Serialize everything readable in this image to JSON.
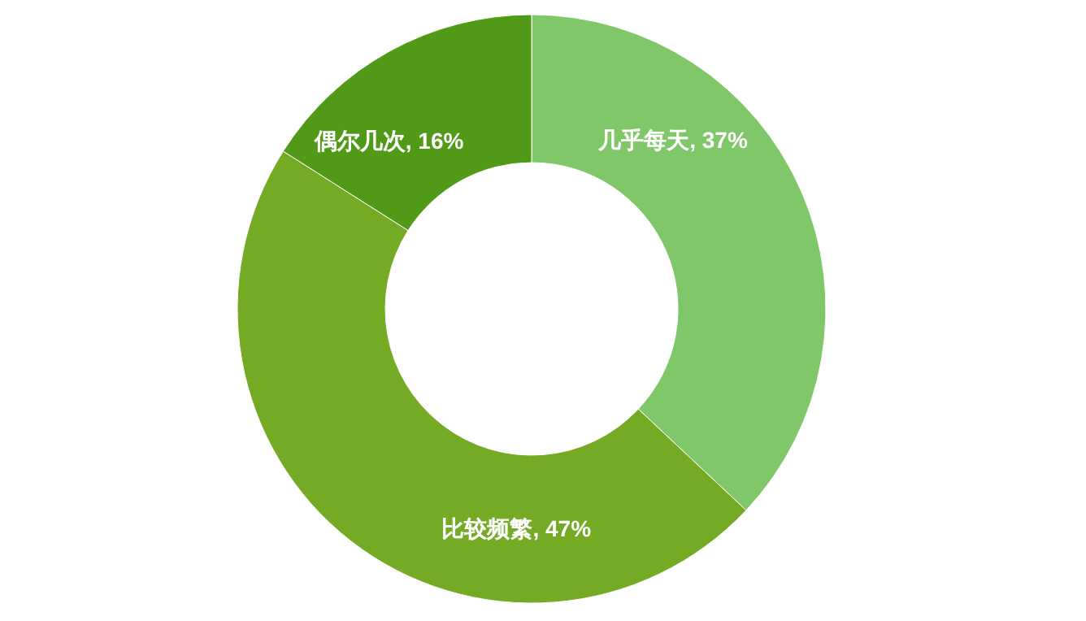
{
  "chart_data": {
    "type": "donut",
    "categories": [
      "几乎每天",
      "比较频繁",
      "偶尔几次"
    ],
    "values": [
      37,
      47,
      16
    ],
    "colors": [
      "#80c769",
      "#74aa24",
      "#519a18"
    ],
    "value_labels": [
      ", 37%",
      ", 47%",
      ", 16%"
    ]
  }
}
